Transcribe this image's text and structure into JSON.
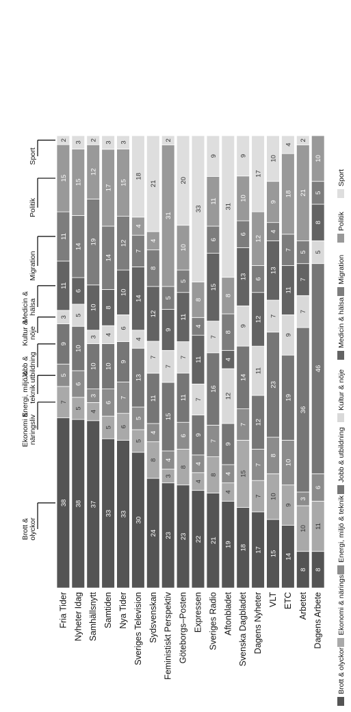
{
  "chart_data": {
    "type": "bar",
    "stacked": true,
    "orientation": "horizontal (rendered rotated 90 degrees)",
    "categories": [
      "Fria Tider",
      "Nyheter Idag",
      "Samhällsnytt",
      "Samtiden",
      "Nya Tider",
      "Sveriges Television",
      "Sydsvenskan",
      "Feministiskt Perspektiv",
      "Göteborgs–Posten",
      "Expressen",
      "Sveriges Radio",
      "Aftonbladet",
      "Svenska Dagbladet",
      "Dagens Nyheter",
      "VLT",
      "ETC",
      "Arbetet",
      "Dagens Arbete"
    ],
    "series": [
      {
        "name": "Brott & olyckor",
        "color": "#545454",
        "values": [
          38,
          38,
          37,
          33,
          33,
          30,
          24,
          23,
          23,
          22,
          21,
          19,
          18,
          17,
          15,
          14,
          8,
          8
        ]
      },
      {
        "name": "Ekonomi & näringsliv",
        "color": "#a9a9a9",
        "values": [
          7,
          5,
          4,
          5,
          6,
          5,
          8,
          3,
          8,
          4,
          8,
          4,
          15,
          7,
          10,
          9,
          10,
          11
        ]
      },
      {
        "name": "Energi, miljö & teknik",
        "color": "#8c8c8c",
        "values": [
          5,
          6,
          3,
          6,
          7,
          5,
          4,
          4,
          6,
          4,
          7,
          4,
          7,
          7,
          8,
          10,
          3,
          6
        ]
      },
      {
        "name": "Jobb & utbildning",
        "color": "#767676",
        "values": [
          9,
          10,
          10,
          10,
          9,
          13,
          11,
          15,
          11,
          9,
          16,
          9,
          14,
          12,
          23,
          19,
          36,
          46
        ]
      },
      {
        "name": "Kultur & nöje",
        "color": "#d9d9d9",
        "values": [
          3,
          5,
          3,
          4,
          6,
          4,
          7,
          7,
          7,
          7,
          7,
          12,
          9,
          11,
          7,
          9,
          7,
          5
        ]
      },
      {
        "name": "Medicin & hälsa",
        "color": "#636363",
        "values": [
          11,
          6,
          10,
          8,
          10,
          14,
          12,
          9,
          11,
          11,
          15,
          4,
          13,
          12,
          13,
          11,
          7,
          8
        ]
      },
      {
        "name": "Migration",
        "color": "#7d7d7d",
        "values": [
          11,
          14,
          19,
          14,
          12,
          7,
          8,
          5,
          5,
          4,
          6,
          8,
          6,
          6,
          4,
          7,
          5,
          5
        ]
      },
      {
        "name": "Politik",
        "color": "#999999",
        "values": [
          15,
          15,
          12,
          17,
          15,
          4,
          4,
          31,
          10,
          8,
          11,
          8,
          10,
          12,
          9,
          18,
          21,
          10
        ]
      },
      {
        "name": "Sport",
        "color": "#dedede",
        "values": [
          2,
          3,
          2,
          3,
          3,
          18,
          21,
          2,
          20,
          33,
          9,
          31,
          9,
          17,
          10,
          4,
          2,
          0
        ]
      }
    ],
    "value_labels_shown": true,
    "axis_labels": {
      "x": "",
      "y": ""
    },
    "top_annotations": [
      {
        "text": "Brott & olyckor",
        "lines": [
          "Brott &",
          "olyckor"
        ]
      },
      {
        "text": "Ekonomi & näringsliv",
        "lines": [
          "Ekonomi &",
          "näringsliv"
        ]
      },
      {
        "text": "Energi, miljö & teknik",
        "lines": [
          "Energi, miljö &",
          "teknik"
        ]
      },
      {
        "text": "Jobb & utbildning",
        "lines": [
          "Jobb &",
          "utbildning"
        ]
      },
      {
        "text": "Kultur & nöje",
        "lines": [
          "Kultur &",
          "nöje"
        ]
      },
      {
        "text": "Medicin & hälsa",
        "lines": [
          "Medicin &",
          "hälsa"
        ]
      },
      {
        "text": "Migration",
        "lines": [
          "Migration"
        ]
      },
      {
        "text": "Politik",
        "lines": [
          "Politik"
        ]
      },
      {
        "text": "Sport",
        "lines": [
          "Sport"
        ]
      }
    ],
    "legend": {
      "placement": "bottom",
      "items": [
        "Brott & olyckor",
        "Ekonomi & näringsliv",
        "Energi, miljö & teknik",
        "Jobb & utbildning",
        "Kultur & nöje",
        "Medicin & hälsa",
        "Migration",
        "Politik",
        "Sport"
      ]
    }
  }
}
